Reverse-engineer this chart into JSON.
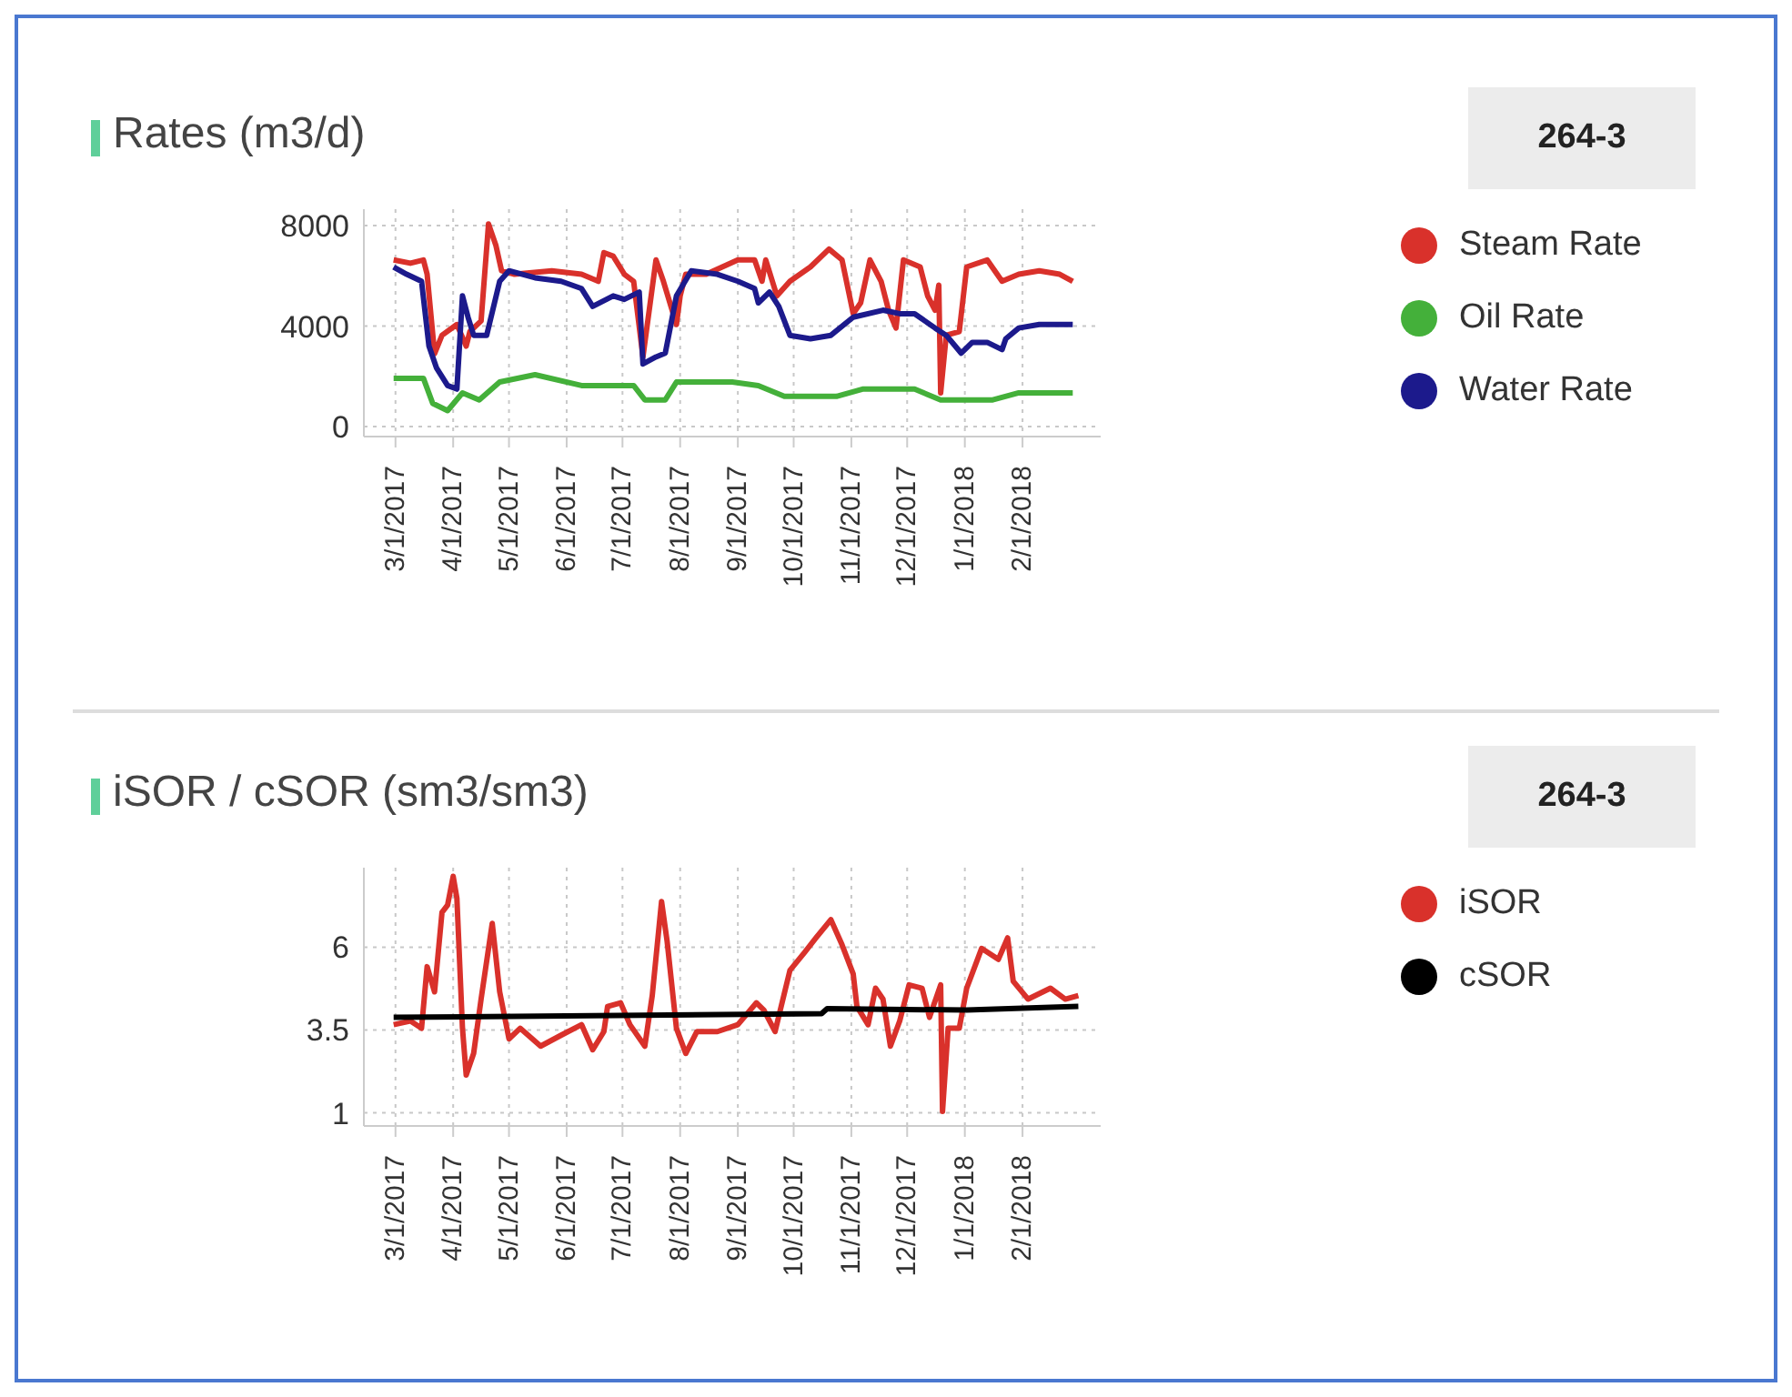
{
  "chart_data": [
    {
      "type": "line",
      "title": "Rates (m3/d)",
      "annotations": [
        "264-3"
      ],
      "legend": "right",
      "grid": true,
      "xlim": [
        "2017-02-12",
        "2018-03-15"
      ],
      "xticks": [
        {
          "value": "2017-03-01",
          "label": "3/1/2017"
        },
        {
          "value": "2017-04-01",
          "label": "4/1/2017"
        },
        {
          "value": "2017-05-01",
          "label": "5/1/2017"
        },
        {
          "value": "2017-06-01",
          "label": "6/1/2017"
        },
        {
          "value": "2017-07-01",
          "label": "7/1/2017"
        },
        {
          "value": "2017-08-01",
          "label": "8/1/2017"
        },
        {
          "value": "2017-09-01",
          "label": "9/1/2017"
        },
        {
          "value": "2017-10-01",
          "label": "10/1/2017"
        },
        {
          "value": "2017-11-01",
          "label": "11/1/2017"
        },
        {
          "value": "2017-12-01",
          "label": "12/1/2017"
        },
        {
          "value": "2018-01-01",
          "label": "1/1/2018"
        },
        {
          "value": "2018-02-01",
          "label": "2/1/2018"
        }
      ],
      "ylim": [
        -400,
        8650
      ],
      "yticks": [
        0,
        4000,
        8000
      ],
      "series": [
        {
          "name": "Steam Rate",
          "color": "#d9312b",
          "x": [
            "2017-02-28",
            "2017-03-09",
            "2017-03-16",
            "2017-03-18",
            "2017-03-22",
            "2017-03-26",
            "2017-04-03",
            "2017-04-08",
            "2017-04-10",
            "2017-04-16",
            "2017-04-20",
            "2017-04-24",
            "2017-04-27",
            "2017-05-04",
            "2017-05-24",
            "2017-06-09",
            "2017-06-18",
            "2017-06-21",
            "2017-06-26",
            "2017-07-02",
            "2017-07-07",
            "2017-07-12",
            "2017-07-19",
            "2017-07-23",
            "2017-07-30",
            "2017-08-01",
            "2017-08-04",
            "2017-08-15",
            "2017-09-01",
            "2017-09-10",
            "2017-09-14",
            "2017-09-16",
            "2017-09-22",
            "2017-09-29",
            "2017-10-10",
            "2017-10-20",
            "2017-10-27",
            "2017-11-02",
            "2017-11-06",
            "2017-11-11",
            "2017-11-17",
            "2017-11-21",
            "2017-11-25",
            "2017-11-29",
            "2017-12-08",
            "2017-12-12",
            "2017-12-16",
            "2017-12-18",
            "2017-12-19",
            "2017-12-22",
            "2017-12-29",
            "2018-01-02",
            "2018-01-13",
            "2018-01-21",
            "2018-01-30",
            "2018-02-10",
            "2018-02-21",
            "2018-02-28"
          ],
          "values": [
            6630,
            6500,
            6630,
            6060,
            2900,
            3630,
            4060,
            3200,
            3780,
            4200,
            8060,
            7200,
            6200,
            6060,
            6200,
            6060,
            5780,
            6920,
            6780,
            6060,
            5780,
            2770,
            6630,
            5780,
            4060,
            5200,
            6060,
            6060,
            6630,
            6630,
            5780,
            6630,
            5200,
            5780,
            6350,
            7060,
            6630,
            4490,
            4920,
            6630,
            5780,
            4630,
            3920,
            6630,
            6350,
            5200,
            4630,
            5630,
            1340,
            3630,
            3780,
            6350,
            6630,
            5780,
            6060,
            6200,
            6060,
            5780
          ]
        },
        {
          "name": "Oil Rate",
          "color": "#44b03a",
          "x": [
            "2017-02-28",
            "2017-03-16",
            "2017-03-21",
            "2017-03-29",
            "2017-04-06",
            "2017-04-15",
            "2017-04-26",
            "2017-05-15",
            "2017-06-09",
            "2017-07-07",
            "2017-07-13",
            "2017-07-24",
            "2017-07-30",
            "2017-08-29",
            "2017-09-12",
            "2017-09-26",
            "2017-10-24",
            "2017-11-07",
            "2017-12-05",
            "2017-12-19",
            "2018-01-16",
            "2018-01-30",
            "2018-02-28"
          ],
          "values": [
            1920,
            1920,
            920,
            630,
            1340,
            1060,
            1770,
            2060,
            1630,
            1630,
            1060,
            1060,
            1770,
            1770,
            1630,
            1200,
            1200,
            1490,
            1490,
            1060,
            1060,
            1340,
            1340
          ]
        },
        {
          "name": "Water Rate",
          "color": "#1c1a8c",
          "x": [
            "2017-02-28",
            "2017-03-07",
            "2017-03-15",
            "2017-03-19",
            "2017-03-23",
            "2017-03-29",
            "2017-04-03",
            "2017-04-06",
            "2017-04-09",
            "2017-04-12",
            "2017-04-19",
            "2017-04-26",
            "2017-05-01",
            "2017-05-15",
            "2017-05-29",
            "2017-06-09",
            "2017-06-15",
            "2017-06-26",
            "2017-07-02",
            "2017-07-10",
            "2017-07-12",
            "2017-07-19",
            "2017-07-24",
            "2017-07-30",
            "2017-08-07",
            "2017-08-21",
            "2017-09-01",
            "2017-09-10",
            "2017-09-12",
            "2017-09-18",
            "2017-09-23",
            "2017-09-29",
            "2017-10-10",
            "2017-10-21",
            "2017-11-02",
            "2017-11-18",
            "2017-11-27",
            "2017-12-05",
            "2017-12-16",
            "2017-12-22",
            "2017-12-30",
            "2018-01-05",
            "2018-01-13",
            "2018-01-21",
            "2018-01-23",
            "2018-01-30",
            "2018-02-10",
            "2018-02-28"
          ],
          "values": [
            6350,
            6060,
            5780,
            3200,
            2340,
            1630,
            1490,
            5200,
            4350,
            3630,
            3630,
            5780,
            6200,
            5920,
            5780,
            5490,
            4780,
            5200,
            5060,
            5350,
            2490,
            2770,
            2920,
            5200,
            6200,
            6060,
            5780,
            5490,
            4920,
            5350,
            4780,
            3630,
            3490,
            3630,
            4350,
            4630,
            4490,
            4490,
            3920,
            3630,
            2920,
            3350,
            3350,
            3060,
            3490,
            3920,
            4060,
            4060
          ]
        }
      ]
    },
    {
      "type": "line",
      "title": "iSOR / cSOR (sm3/sm3)",
      "annotations": [
        "264-3"
      ],
      "legend": "right",
      "grid": true,
      "xlim": [
        "2017-02-12",
        "2018-03-15"
      ],
      "xticks": [
        {
          "value": "2017-03-01",
          "label": "3/1/2017"
        },
        {
          "value": "2017-04-01",
          "label": "4/1/2017"
        },
        {
          "value": "2017-05-01",
          "label": "5/1/2017"
        },
        {
          "value": "2017-06-01",
          "label": "6/1/2017"
        },
        {
          "value": "2017-07-01",
          "label": "7/1/2017"
        },
        {
          "value": "2017-08-01",
          "label": "8/1/2017"
        },
        {
          "value": "2017-09-01",
          "label": "9/1/2017"
        },
        {
          "value": "2017-10-01",
          "label": "10/1/2017"
        },
        {
          "value": "2017-11-01",
          "label": "11/1/2017"
        },
        {
          "value": "2017-12-01",
          "label": "12/1/2017"
        },
        {
          "value": "2018-01-01",
          "label": "1/1/2018"
        },
        {
          "value": "2018-02-01",
          "label": "2/1/2018"
        }
      ],
      "ylim": [
        0.6,
        8.4
      ],
      "yticks": [
        1,
        3.5,
        6
      ],
      "series": [
        {
          "name": "iSOR",
          "color": "#d9312b",
          "x": [
            "2017-02-28",
            "2017-03-09",
            "2017-03-15",
            "2017-03-18",
            "2017-03-22",
            "2017-03-26",
            "2017-03-29",
            "2017-04-01",
            "2017-04-03",
            "2017-04-06",
            "2017-04-08",
            "2017-04-12",
            "2017-04-16",
            "2017-04-22",
            "2017-04-26",
            "2017-05-01",
            "2017-05-07",
            "2017-05-18",
            "2017-05-29",
            "2017-06-09",
            "2017-06-15",
            "2017-06-21",
            "2017-06-23",
            "2017-06-30",
            "2017-07-05",
            "2017-07-13",
            "2017-07-17",
            "2017-07-22",
            "2017-07-25",
            "2017-07-30",
            "2017-08-04",
            "2017-08-10",
            "2017-08-21",
            "2017-09-01",
            "2017-09-11",
            "2017-09-15",
            "2017-09-21",
            "2017-09-29",
            "2017-10-07",
            "2017-10-13",
            "2017-10-21",
            "2017-10-27",
            "2017-11-02",
            "2017-11-04",
            "2017-11-10",
            "2017-11-14",
            "2017-11-18",
            "2017-11-22",
            "2017-11-27",
            "2017-12-02",
            "2017-12-09",
            "2017-12-13",
            "2017-12-19",
            "2017-12-20",
            "2017-12-23",
            "2017-12-29",
            "2018-01-02",
            "2018-01-10",
            "2018-01-19",
            "2018-01-24",
            "2018-01-27",
            "2018-02-04",
            "2018-02-16",
            "2018-02-24",
            "2018-03-03"
          ],
          "values": [
            3.66,
            3.77,
            3.55,
            5.41,
            4.65,
            7.05,
            7.27,
            8.14,
            7.48,
            3.55,
            2.14,
            2.79,
            4.43,
            6.72,
            4.65,
            3.23,
            3.55,
            3.01,
            3.34,
            3.66,
            2.9,
            3.45,
            4.21,
            4.32,
            3.66,
            3.01,
            4.54,
            7.38,
            6.17,
            3.55,
            2.79,
            3.45,
            3.45,
            3.66,
            4.32,
            4.1,
            3.45,
            5.3,
            5.85,
            6.28,
            6.83,
            6.07,
            5.19,
            4.21,
            3.66,
            4.76,
            4.43,
            3.01,
            3.77,
            4.86,
            4.76,
            3.88,
            4.86,
            1.04,
            3.55,
            3.55,
            4.76,
            5.96,
            5.63,
            6.28,
            4.97,
            4.43,
            4.76,
            4.43,
            4.54
          ]
        },
        {
          "name": "cSOR",
          "color": "#000000",
          "x": [
            "2017-02-28",
            "2017-10-16",
            "2017-10-19",
            "2018-01-02",
            "2018-03-03"
          ],
          "values": [
            3.88,
            3.99,
            4.14,
            4.1,
            4.21
          ]
        }
      ]
    }
  ]
}
